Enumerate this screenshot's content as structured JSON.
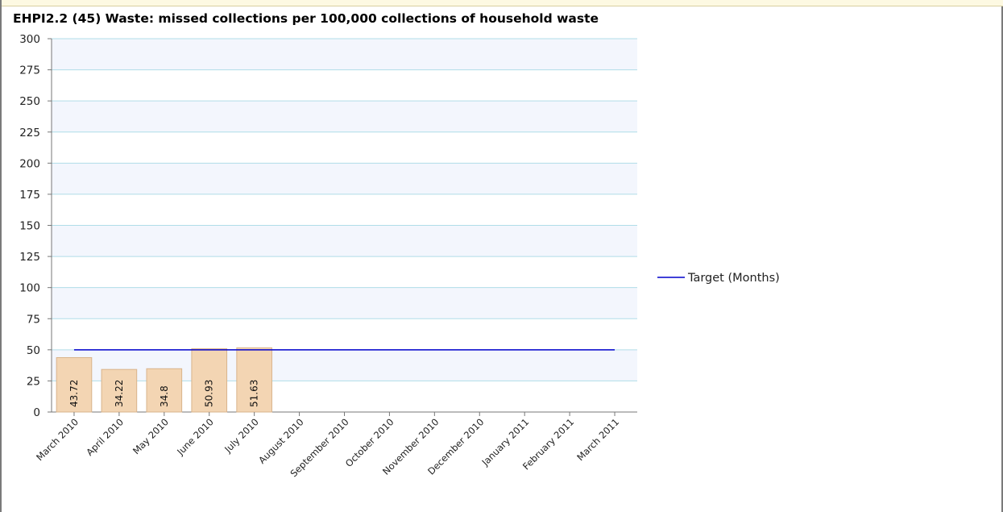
{
  "chart_data": {
    "type": "bar",
    "title": "EHPI2.2 (45) Waste: missed collections per 100,000 collections of household waste",
    "categories": [
      "March 2010",
      "April 2010",
      "May 2010",
      "June 2010",
      "July 2010",
      "August 2010",
      "September 2010",
      "October 2010",
      "November 2010",
      "December 2010",
      "January 2011",
      "February 2011",
      "March 2011"
    ],
    "series": [
      {
        "values": [
          43.72,
          34.22,
          34.8,
          50.93,
          51.63,
          null,
          null,
          null,
          null,
          null,
          null,
          null,
          null
        ],
        "color": "#f3d5b3"
      }
    ],
    "data_labels": [
      "43.72",
      "34.22",
      "34.8",
      "50.93",
      "51.63"
    ],
    "target": {
      "name": "Target (Months)",
      "value": 50,
      "color": "#0000cc"
    },
    "yticks": [
      0,
      25,
      50,
      75,
      100,
      125,
      150,
      175,
      200,
      225,
      250,
      275,
      300
    ],
    "ylim": [
      0,
      300
    ],
    "xlabel": "",
    "ylabel": "",
    "grid": true,
    "legend_position": "right",
    "colors": {
      "grid": "#b0dde8",
      "plot_band": "#f3f6fd",
      "axis": "#777777"
    }
  }
}
